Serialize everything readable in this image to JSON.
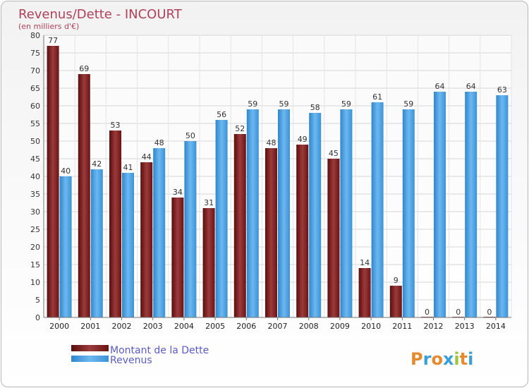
{
  "chart_data": {
    "type": "bar",
    "title": "Revenus/Dette - INCOURT",
    "subtitle": "(en milliers d'€)",
    "categories": [
      "2000",
      "2001",
      "2002",
      "2003",
      "2004",
      "2005",
      "2006",
      "2007",
      "2008",
      "2009",
      "2010",
      "2011",
      "2012",
      "2013",
      "2014"
    ],
    "series": [
      {
        "name": "Montant de la Dette",
        "color": "#7a1d1d",
        "values": [
          77,
          69,
          53,
          44,
          34,
          31,
          52,
          48,
          49,
          45,
          14,
          9,
          0,
          0,
          0
        ]
      },
      {
        "name": "Revenus",
        "color": "#4fa3e3",
        "values": [
          40,
          42,
          41,
          48,
          50,
          56,
          59,
          59,
          58,
          59,
          61,
          59,
          64,
          64,
          63
        ]
      }
    ],
    "ylim": [
      0,
      80
    ],
    "yticks": [
      0,
      5,
      10,
      15,
      20,
      25,
      30,
      35,
      40,
      45,
      50,
      55,
      60,
      65,
      70,
      75,
      80
    ],
    "grid": true,
    "legend": "bottom-left"
  },
  "logo": {
    "text": "Proxiti"
  }
}
